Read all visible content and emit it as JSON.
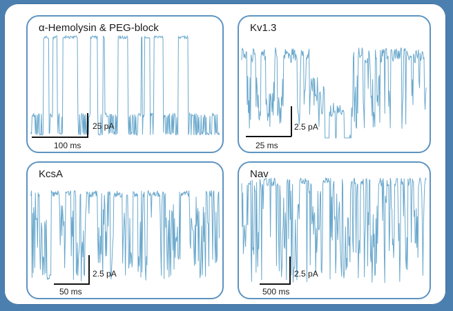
{
  "figure": {
    "background_color": "#4a7fb0",
    "trace_color": "#6aa8cc",
    "panel_border_color": "#5d93c0"
  },
  "chart_data": [
    {
      "type": "line",
      "title": "α-Hemolysin & PEG-block",
      "scale_bar": {
        "time": "100 ms",
        "current": "25 pA"
      },
      "pattern": "block"
    },
    {
      "type": "line",
      "title": "Kv1.3",
      "scale_bar": {
        "time": "25 ms",
        "current": "2.5 pA"
      },
      "pattern": "kv"
    },
    {
      "type": "line",
      "title": "KcsA",
      "scale_bar": {
        "time": "50 ms",
        "current": "2.5 pA"
      },
      "pattern": "kcsa"
    },
    {
      "type": "line",
      "title": "Nav",
      "scale_bar": {
        "time": "500 ms",
        "current": "2.5 pA"
      },
      "pattern": "nav"
    }
  ]
}
